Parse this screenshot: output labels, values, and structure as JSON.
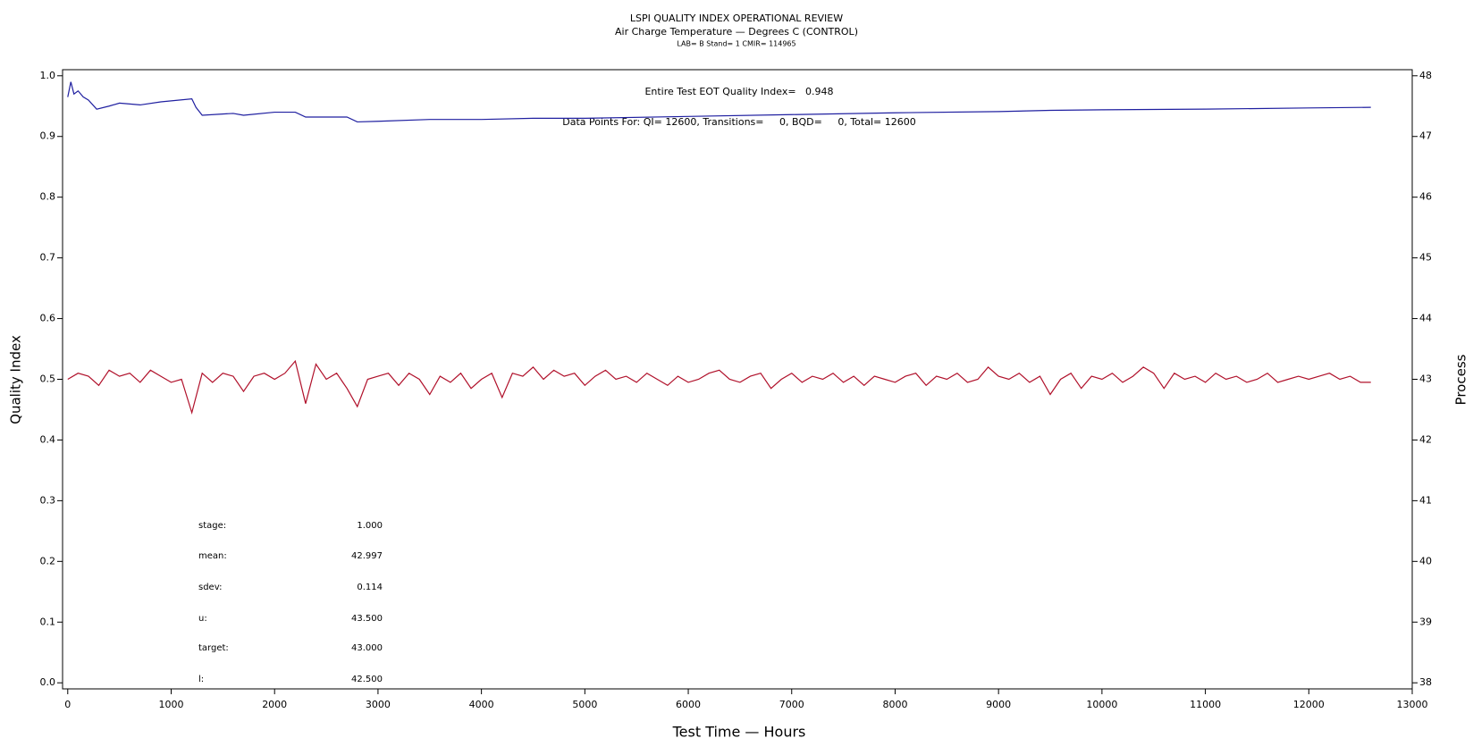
{
  "chart_data": {
    "type": "line",
    "title": "LSPI QUALITY INDEX OPERATIONAL REVIEW",
    "subtitle": "Air Charge Temperature — Degrees C (CONTROL)",
    "subtitle2": "LAB= B Stand= 1 CMIR= 114965",
    "xlabel": "Test Time — Hours",
    "ylabel": "Quality Index",
    "y2label": "Process",
    "annotations": [
      "Entire Test EOT Quality Index=   0.948",
      "Data Points For: QI= 12600, Transitions=     0, BQD=     0, Total= 12600"
    ],
    "stats": [
      {
        "label": "stage:",
        "value": "1.000"
      },
      {
        "label": "mean:",
        "value": "42.997"
      },
      {
        "label": "sdev:",
        "value": "0.114"
      },
      {
        "label": "u:",
        "value": "43.500"
      },
      {
        "label": "target:",
        "value": "43.000"
      },
      {
        "label": "l:",
        "value": "42.500"
      }
    ],
    "xlim": [
      -50,
      13000
    ],
    "xticks": [
      0,
      1000,
      2000,
      3000,
      4000,
      5000,
      6000,
      7000,
      8000,
      9000,
      10000,
      11000,
      12000,
      13000
    ],
    "ylim": [
      -0.01,
      1.01
    ],
    "yticks": [
      {
        "value": 0,
        "label": "0.0"
      },
      0.1,
      0.2,
      0.3,
      0.4,
      0.5,
      0.6,
      0.7,
      0.8,
      0.9,
      {
        "value": 1,
        "label": "1.0"
      }
    ],
    "y2lim": [
      37.9,
      48.1
    ],
    "y2ticks": [
      38,
      39,
      40,
      41,
      42,
      43,
      44,
      45,
      46,
      47,
      48
    ],
    "series": [
      {
        "name": "Quality Index",
        "color": "#1f1fa0",
        "x": [
          0,
          30,
          60,
          100,
          150,
          200,
          280,
          400,
          500,
          700,
          900,
          1200,
          1240,
          1300,
          1600,
          1700,
          2000,
          2200,
          2300,
          2700,
          2800,
          3000,
          3500,
          4000,
          4500,
          5000,
          6000,
          7000,
          8000,
          9000,
          9500,
          10000,
          11000,
          12000,
          12600
        ],
        "values": [
          0.965,
          0.99,
          0.97,
          0.975,
          0.965,
          0.96,
          0.945,
          0.95,
          0.955,
          0.952,
          0.957,
          0.962,
          0.948,
          0.935,
          0.938,
          0.935,
          0.94,
          0.94,
          0.932,
          0.932,
          0.924,
          0.925,
          0.928,
          0.928,
          0.93,
          0.93,
          0.933,
          0.936,
          0.939,
          0.941,
          0.943,
          0.944,
          0.945,
          0.947,
          0.948
        ]
      },
      {
        "name": "Process",
        "color": "#b0102a",
        "axis": "y2",
        "x": [
          0,
          100,
          200,
          300,
          400,
          500,
          600,
          700,
          800,
          900,
          1000,
          1100,
          1200,
          1300,
          1400,
          1500,
          1600,
          1700,
          1800,
          1900,
          2000,
          2100,
          2200,
          2300,
          2400,
          2500,
          2600,
          2700,
          2800,
          2900,
          3000,
          3100,
          3200,
          3300,
          3400,
          3500,
          3600,
          3700,
          3800,
          3900,
          4000,
          4100,
          4200,
          4300,
          4400,
          4500,
          4600,
          4700,
          4800,
          4900,
          5000,
          5100,
          5200,
          5300,
          5400,
          5500,
          5600,
          5700,
          5800,
          5900,
          6000,
          6100,
          6200,
          6300,
          6400,
          6500,
          6600,
          6700,
          6800,
          6900,
          7000,
          7100,
          7200,
          7300,
          7400,
          7500,
          7600,
          7700,
          7800,
          7900,
          8000,
          8100,
          8200,
          8300,
          8400,
          8500,
          8600,
          8700,
          8800,
          8900,
          9000,
          9100,
          9200,
          9300,
          9400,
          9500,
          9600,
          9700,
          9800,
          9900,
          10000,
          10100,
          10200,
          10300,
          10400,
          10500,
          10600,
          10700,
          10800,
          10900,
          11000,
          11100,
          11200,
          11300,
          11400,
          11500,
          11600,
          11700,
          11800,
          11900,
          12000,
          12100,
          12200,
          12300,
          12400,
          12500,
          12600
        ],
        "values": [
          43.0,
          43.1,
          43.05,
          42.9,
          43.15,
          43.05,
          43.1,
          42.95,
          43.15,
          43.05,
          42.95,
          43.0,
          42.45,
          43.1,
          42.95,
          43.1,
          43.05,
          42.8,
          43.05,
          43.1,
          43.0,
          43.1,
          43.3,
          42.6,
          43.25,
          43.0,
          43.1,
          42.85,
          42.55,
          43.0,
          43.05,
          43.1,
          42.9,
          43.1,
          43.0,
          42.75,
          43.05,
          42.95,
          43.1,
          42.85,
          43.0,
          43.1,
          42.7,
          43.1,
          43.05,
          43.2,
          43.0,
          43.15,
          43.05,
          43.1,
          42.9,
          43.05,
          43.15,
          43.0,
          43.05,
          42.95,
          43.1,
          43.0,
          42.9,
          43.05,
          42.95,
          43.0,
          43.1,
          43.15,
          43.0,
          42.95,
          43.05,
          43.1,
          42.85,
          43.0,
          43.1,
          42.95,
          43.05,
          43.0,
          43.1,
          42.95,
          43.05,
          42.9,
          43.05,
          43.0,
          42.95,
          43.05,
          43.1,
          42.9,
          43.05,
          43.0,
          43.1,
          42.95,
          43.0,
          43.2,
          43.05,
          43.0,
          43.1,
          42.95,
          43.05,
          42.75,
          43.0,
          43.1,
          42.85,
          43.05,
          43.0,
          43.1,
          42.95,
          43.05,
          43.2,
          43.1,
          42.85,
          43.1,
          43.0,
          43.05,
          42.95,
          43.1,
          43.0,
          43.05,
          42.95,
          43.0,
          43.1,
          42.95,
          43.0,
          43.05,
          43.0,
          43.05,
          43.1,
          43.0,
          43.05,
          42.95,
          42.95
        ]
      }
    ]
  }
}
